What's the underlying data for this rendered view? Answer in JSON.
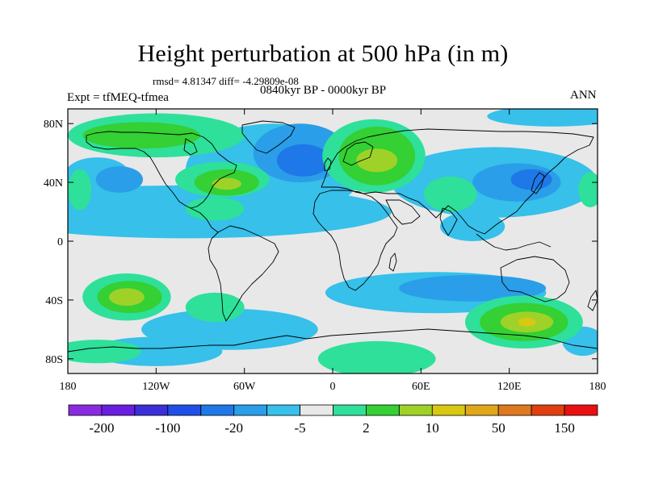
{
  "title": "Height perturbation at 500 hPa (in m)",
  "stats": {
    "text": "rmsd= 4.81347  diff= -4.29809e-08"
  },
  "subtitle": {
    "left": "Expt = tfMEQ-tfmea",
    "center": "0840kyr BP - 0000kyr BP",
    "right": "ANN"
  },
  "axes": {
    "lat_labels": [
      "80N",
      "40N",
      "0",
      "40S",
      "80S"
    ],
    "lat_values": [
      80,
      40,
      0,
      -40,
      -80
    ],
    "lon_labels": [
      "180",
      "120W",
      "60W",
      "0",
      "60E",
      "120E",
      "180"
    ],
    "lon_values": [
      -180,
      -120,
      -60,
      0,
      60,
      120,
      180
    ],
    "lat_range": [
      -90,
      90
    ],
    "lon_range": [
      -180,
      180
    ]
  },
  "colorbar": {
    "colors": [
      "#8a2be2",
      "#6a1ee0",
      "#3a2fd8",
      "#1e4fe6",
      "#1e78e8",
      "#2a9ee8",
      "#36c0ea",
      "#e8e8e8",
      "#2ee09a",
      "#34d034",
      "#9ed228",
      "#d8c812",
      "#e0a818",
      "#e07820",
      "#e04010",
      "#e81010"
    ],
    "labels": [
      "-200",
      "-100",
      "-20",
      "-5",
      "2",
      "10",
      "50",
      "150"
    ]
  },
  "field": {
    "colors": {
      "neutral": "#e8e8e8",
      "weak_neg": "#36c0ea",
      "mod_neg": "#2a9ee8",
      "strong_neg": "#1e78e8",
      "weak_pos": "#2ee09a",
      "mod_pos": "#34d034",
      "strong_pos": "#9ed228",
      "peak_pos": "#d8c812"
    },
    "blobs": [
      {
        "lon": -100,
        "lat": 20,
        "rx": 140,
        "ry": 18,
        "level": "weak_neg"
      },
      {
        "lon": -40,
        "lat": 48,
        "rx": 60,
        "ry": 32,
        "level": "weak_neg"
      },
      {
        "lon": -22,
        "lat": 60,
        "rx": 32,
        "ry": 20,
        "level": "mod_neg"
      },
      {
        "lon": -20,
        "lat": 55,
        "rx": 18,
        "ry": 11,
        "level": "strong_neg"
      },
      {
        "lon": -160,
        "lat": 45,
        "rx": 22,
        "ry": 12,
        "level": "weak_neg"
      },
      {
        "lon": -145,
        "lat": 42,
        "rx": 16,
        "ry": 9,
        "level": "mod_neg"
      },
      {
        "lon": 110,
        "lat": 40,
        "rx": 70,
        "ry": 24,
        "level": "weak_neg"
      },
      {
        "lon": 125,
        "lat": 40,
        "rx": 30,
        "ry": 13,
        "level": "mod_neg"
      },
      {
        "lon": 135,
        "lat": 42,
        "rx": 14,
        "ry": 7,
        "level": "strong_neg"
      },
      {
        "lon": 150,
        "lat": 85,
        "rx": 45,
        "ry": 7,
        "level": "weak_neg"
      },
      {
        "lon": 95,
        "lat": 10,
        "rx": 22,
        "ry": 10,
        "level": "weak_neg"
      },
      {
        "lon": -120,
        "lat": 72,
        "rx": 60,
        "ry": 15,
        "level": "weak_pos"
      },
      {
        "lon": -130,
        "lat": 72,
        "rx": 40,
        "ry": 9,
        "level": "mod_pos"
      },
      {
        "lon": -75,
        "lat": 42,
        "rx": 32,
        "ry": 12,
        "level": "weak_pos"
      },
      {
        "lon": -72,
        "lat": 40,
        "rx": 22,
        "ry": 9,
        "level": "mod_pos"
      },
      {
        "lon": -72,
        "lat": 39,
        "rx": 10,
        "ry": 4,
        "level": "strong_pos"
      },
      {
        "lon": 28,
        "lat": 58,
        "rx": 35,
        "ry": 25,
        "level": "weak_pos"
      },
      {
        "lon": 30,
        "lat": 58,
        "rx": 26,
        "ry": 20,
        "level": "mod_pos"
      },
      {
        "lon": 30,
        "lat": 55,
        "rx": 14,
        "ry": 8,
        "level": "strong_pos"
      },
      {
        "lon": -172,
        "lat": 35,
        "rx": 8,
        "ry": 14,
        "level": "weak_pos"
      },
      {
        "lon": 175,
        "lat": 35,
        "rx": 8,
        "ry": 12,
        "level": "weak_pos"
      },
      {
        "lon": 80,
        "lat": 32,
        "rx": 18,
        "ry": 12,
        "level": "weak_pos"
      },
      {
        "lon": -80,
        "lat": 22,
        "rx": 20,
        "ry": 8,
        "level": "weak_pos"
      },
      {
        "lon": -70,
        "lat": -60,
        "rx": 60,
        "ry": 14,
        "level": "weak_neg"
      },
      {
        "lon": 70,
        "lat": -35,
        "rx": 75,
        "ry": 14,
        "level": "weak_neg"
      },
      {
        "lon": 95,
        "lat": -32,
        "rx": 50,
        "ry": 9,
        "level": "mod_neg"
      },
      {
        "lon": -120,
        "lat": -75,
        "rx": 45,
        "ry": 10,
        "level": "weak_neg"
      },
      {
        "lon": 170,
        "lat": -68,
        "rx": 14,
        "ry": 10,
        "level": "weak_neg"
      },
      {
        "lon": -140,
        "lat": -38,
        "rx": 30,
        "ry": 16,
        "level": "weak_pos"
      },
      {
        "lon": -138,
        "lat": -38,
        "rx": 22,
        "ry": 11,
        "level": "mod_pos"
      },
      {
        "lon": -140,
        "lat": -38,
        "rx": 12,
        "ry": 6,
        "level": "strong_pos"
      },
      {
        "lon": -160,
        "lat": -75,
        "rx": 30,
        "ry": 8,
        "level": "weak_pos"
      },
      {
        "lon": 130,
        "lat": -55,
        "rx": 40,
        "ry": 18,
        "level": "weak_pos"
      },
      {
        "lon": 130,
        "lat": -55,
        "rx": 30,
        "ry": 13,
        "level": "mod_pos"
      },
      {
        "lon": 132,
        "lat": -55,
        "rx": 18,
        "ry": 7,
        "level": "strong_pos"
      },
      {
        "lon": 132,
        "lat": -55,
        "rx": 6,
        "ry": 3,
        "level": "peak_pos"
      },
      {
        "lon": 30,
        "lat": -80,
        "rx": 40,
        "ry": 12,
        "level": "weak_pos"
      },
      {
        "lon": -80,
        "lat": -45,
        "rx": 20,
        "ry": 10,
        "level": "weak_pos"
      }
    ]
  }
}
